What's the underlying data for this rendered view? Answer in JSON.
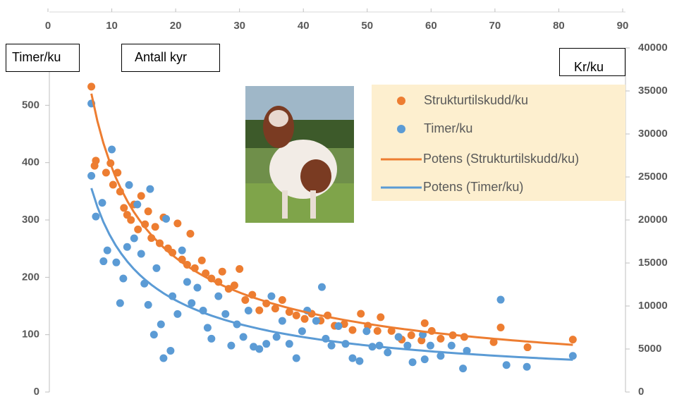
{
  "chart_data": {
    "type": "scatter",
    "x_label": "Antall kyr",
    "y_label": "Timer/ku",
    "y2_label": "Kr/ku",
    "xlim": [
      0,
      90
    ],
    "xticks": [
      0,
      10,
      20,
      30,
      40,
      50,
      60,
      70,
      80,
      90
    ],
    "ylim": [
      0,
      600
    ],
    "yticks": [
      0,
      100,
      200,
      300,
      400,
      500
    ],
    "y2lim": [
      0,
      40000
    ],
    "y2ticks": [
      0,
      5000,
      10000,
      15000,
      20000,
      25000,
      30000,
      35000,
      40000
    ],
    "grid": false,
    "legend": "top-right",
    "series": [
      {
        "name": "Strukturtilskudd/ku",
        "color": "#ed7d31",
        "axis": "y2",
        "trendline_name": "Potens (Strukturtilskudd/ku)",
        "x": [
          6.8,
          7.5,
          7.3,
          9.1,
          9.8,
          10.2,
          10.9,
          11.3,
          11.9,
          12.4,
          13,
          13.5,
          14.1,
          14.6,
          15.2,
          15.7,
          16.2,
          16.8,
          17.5,
          18.1,
          18.8,
          19.5,
          20.3,
          21,
          21.8,
          22.3,
          23,
          24.1,
          24.7,
          25.6,
          26.7,
          27.3,
          28.3,
          29.2,
          30,
          30.9,
          32,
          33.1,
          34.2,
          35.6,
          36.7,
          37.8,
          38.9,
          40.2,
          41.3,
          42.7,
          43.8,
          44.9,
          46.4,
          47.7,
          49,
          50.1,
          51.6,
          52.1,
          53.8,
          55.4,
          56.9,
          58.5,
          59,
          60.1,
          61.5,
          63.4,
          65.2,
          69.8,
          70.9,
          75.1,
          82.2
        ],
        "values": [
          35500,
          26900,
          26300,
          25500,
          26600,
          24100,
          25500,
          23300,
          21400,
          20600,
          20000,
          21800,
          18900,
          22800,
          19500,
          21000,
          17900,
          19200,
          17300,
          20300,
          16700,
          16200,
          19600,
          15400,
          14800,
          18400,
          14400,
          15300,
          13800,
          13200,
          12800,
          14000,
          12000,
          12400,
          14300,
          10700,
          11300,
          9500,
          10300,
          9700,
          10700,
          9300,
          8900,
          8500,
          9100,
          8300,
          8900,
          7700,
          7900,
          7200,
          9100,
          7700,
          7100,
          8700,
          7100,
          6100,
          6600,
          6000,
          8000,
          7100,
          6200,
          6600,
          6400,
          5800,
          7500,
          5200,
          6100
        ]
      },
      {
        "name": "Timer/ku",
        "color": "#5b9bd5",
        "axis": "y",
        "trendline_name": "Potens (Timer/ku)",
        "x": [
          6.8,
          6.8,
          7.5,
          10,
          8.5,
          9.3,
          8.7,
          10.7,
          11.3,
          11.8,
          12.7,
          12.4,
          13.5,
          14,
          14.6,
          15.1,
          15.7,
          16,
          16.6,
          17,
          17.7,
          18.1,
          19.2,
          18.5,
          19.5,
          20.3,
          21,
          21.8,
          22.5,
          23.4,
          24.3,
          25,
          25.6,
          26.7,
          27.8,
          28.7,
          29.6,
          30.6,
          31.4,
          32.2,
          33.1,
          34.2,
          35,
          35.8,
          36.7,
          37.8,
          38.9,
          39.8,
          40.6,
          42,
          42.9,
          43.5,
          44.4,
          45.5,
          46.6,
          47.7,
          48.8,
          49.9,
          50.8,
          51.9,
          53.2,
          54.9,
          56.3,
          57.1,
          58.7,
          59,
          59.9,
          61.5,
          63.2,
          65,
          65.6,
          70.9,
          71.8,
          75,
          82.2
        ],
        "values": [
          503,
          377,
          306,
          423,
          330,
          247,
          228,
          226,
          155,
          198,
          361,
          253,
          268,
          327,
          241,
          189,
          152,
          354,
          100,
          216,
          118,
          59,
          72,
          302,
          167,
          136,
          247,
          192,
          155,
          182,
          142,
          112,
          93,
          167,
          136,
          81,
          118,
          96,
          142,
          79,
          75,
          84,
          167,
          96,
          124,
          84,
          59,
          106,
          142,
          124,
          183,
          93,
          81,
          115,
          84,
          59,
          54,
          106,
          79,
          81,
          69,
          96,
          81,
          52,
          100,
          57,
          81,
          63,
          81,
          41,
          72,
          161,
          47,
          44,
          63
        ]
      }
    ]
  }
}
